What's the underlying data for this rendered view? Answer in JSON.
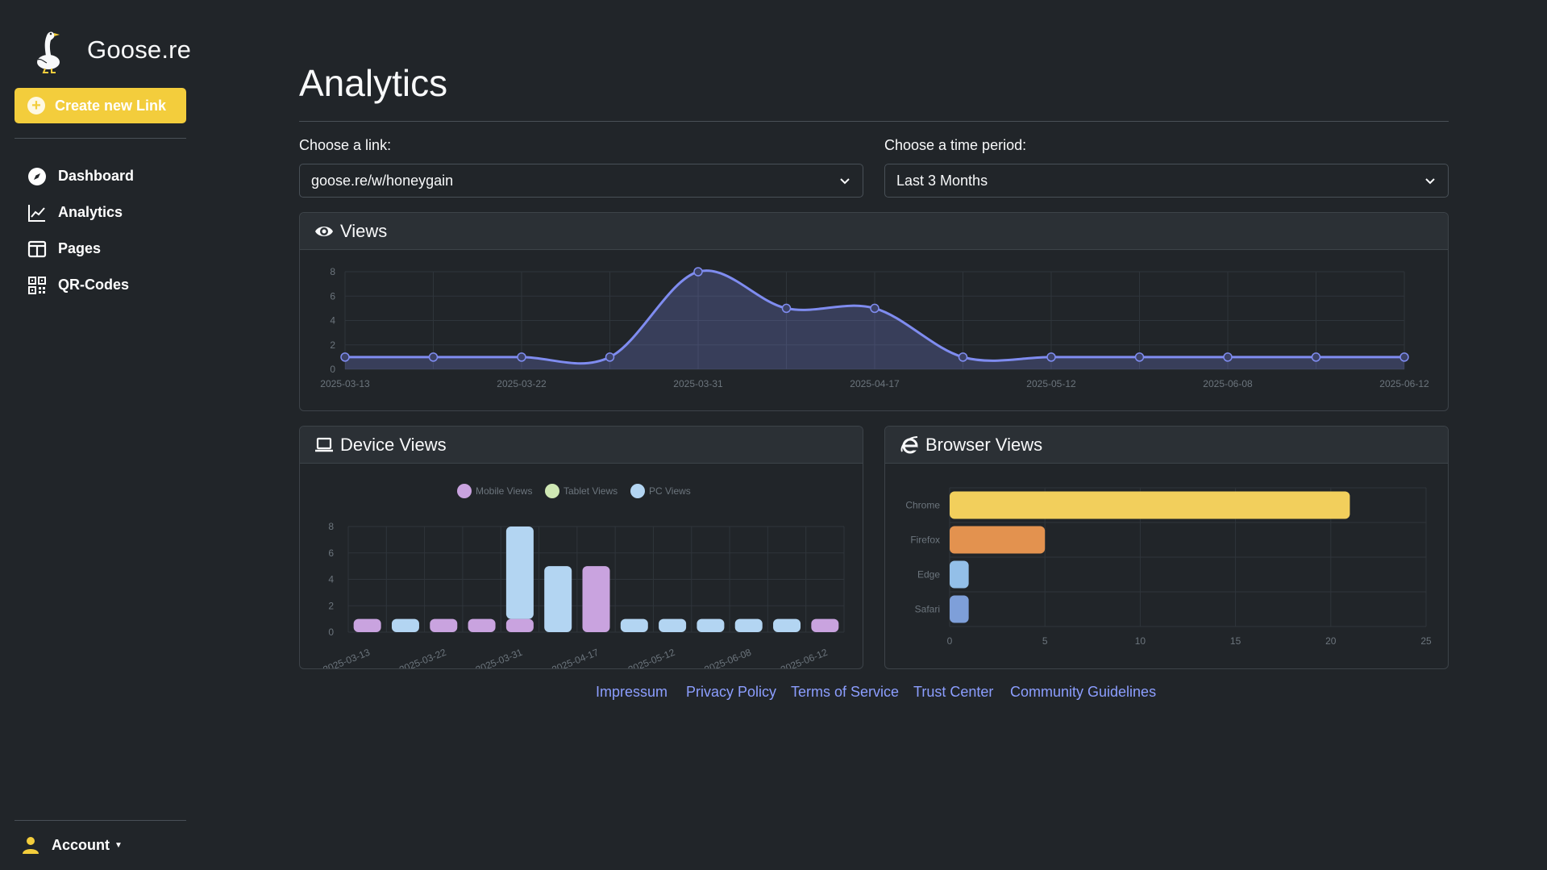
{
  "brand": {
    "name": "Goose.re"
  },
  "sidebar": {
    "create_label": "Create new Link",
    "items": [
      {
        "label": "Dashboard",
        "icon": "compass-icon"
      },
      {
        "label": "Analytics",
        "icon": "chart-line-icon"
      },
      {
        "label": "Pages",
        "icon": "layout-icon"
      },
      {
        "label": "QR-Codes",
        "icon": "qr-code-icon"
      }
    ],
    "account_label": "Account"
  },
  "page": {
    "title": "Analytics"
  },
  "filters": {
    "link_label": "Choose a link:",
    "link_value": "goose.re/w/honeygain",
    "period_label": "Choose a time period:",
    "period_value": "Last 3 Months"
  },
  "cards": {
    "views_title": "Views",
    "device_title": "Device Views",
    "browser_title": "Browser Views"
  },
  "colors": {
    "accent": "#f3cd3c",
    "line": "#7f8cf0",
    "mobile": "#c9a3df",
    "tablet": "#cfe8b4",
    "pc": "#b3d5f2",
    "chrome": "#f2cf5c",
    "firefox": "#e3924f",
    "edge": "#93bfe8",
    "safari": "#7e9fd9",
    "link": "#8c9eff"
  },
  "chart_data": [
    {
      "type": "area",
      "x": [
        "2025-03-13",
        "2025-03-18",
        "2025-03-22",
        "2025-03-27",
        "2025-03-31",
        "2025-04-09",
        "2025-04-17",
        "2025-04-26",
        "2025-05-12",
        "2025-05-25",
        "2025-06-08",
        "2025-06-10",
        "2025-06-12"
      ],
      "tick_labels": [
        "2025-03-13",
        "2025-03-22",
        "2025-03-31",
        "2025-04-17",
        "2025-05-12",
        "2025-06-08",
        "2025-06-12"
      ],
      "series": [
        {
          "values": [
            1,
            1,
            1,
            1,
            8,
            5,
            5,
            1,
            1,
            1,
            1,
            1,
            1
          ]
        }
      ],
      "ylim": [
        0,
        8
      ],
      "yticks": [
        0,
        2,
        4,
        6,
        8
      ],
      "grid": true
    },
    {
      "type": "bar",
      "stacked": true,
      "categories": [
        "2025-03-13",
        "2025-03-18",
        "2025-03-22",
        "2025-03-27",
        "2025-03-31",
        "2025-04-09",
        "2025-04-17",
        "2025-04-26",
        "2025-05-12",
        "2025-05-25",
        "2025-06-08",
        "2025-06-10",
        "2025-06-12"
      ],
      "tick_labels": [
        "2025-03-13",
        "2025-03-22",
        "2025-03-31",
        "2025-04-17",
        "2025-05-12",
        "2025-06-08",
        "2025-06-12"
      ],
      "series": [
        {
          "name": "Mobile Views",
          "values": [
            1,
            0,
            1,
            1,
            1,
            0,
            5,
            0,
            0,
            0,
            0,
            0,
            1
          ]
        },
        {
          "name": "Tablet Views",
          "values": [
            0,
            0,
            0,
            0,
            0,
            0,
            0,
            0,
            0,
            0,
            0,
            0,
            0
          ]
        },
        {
          "name": "PC Views",
          "values": [
            0,
            1,
            0,
            0,
            7,
            5,
            0,
            1,
            1,
            1,
            1,
            1,
            0
          ]
        }
      ],
      "ylim": [
        0,
        8
      ],
      "yticks": [
        0,
        2,
        4,
        6,
        8
      ],
      "legend": "top",
      "grid": true
    },
    {
      "type": "bar",
      "orientation": "horizontal",
      "categories": [
        "Chrome",
        "Firefox",
        "Edge",
        "Safari"
      ],
      "values": [
        21,
        5,
        1,
        1
      ],
      "xlim": [
        0,
        25
      ],
      "xticks": [
        0,
        5,
        10,
        15,
        20,
        25
      ],
      "grid": true
    }
  ],
  "footer": {
    "links": [
      "Impressum",
      "Privacy Policy",
      "Terms of Service",
      "Trust Center",
      "Community Guidelines"
    ]
  }
}
